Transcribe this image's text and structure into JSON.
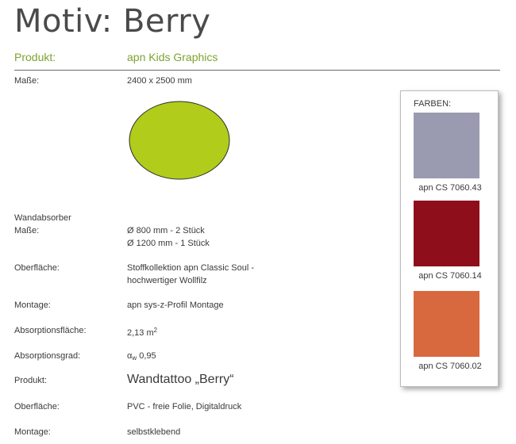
{
  "header": {
    "title": "Motiv: Berry",
    "produkt_label": "Produkt:",
    "produkt_value": "apn Kids Graphics"
  },
  "masse": {
    "label": "Maße:",
    "value": "2400 x 2500 mm"
  },
  "circle_color": "#b1cc1a",
  "wandabsorber": {
    "section_label": "Wandabsorber",
    "rows": [
      {
        "label": "Maße:",
        "lines": [
          "Ø 800 mm - 2 Stück",
          "Ø 1200 mm - 1 Stück"
        ]
      },
      {
        "label": "Oberfläche:",
        "lines": [
          "Stoffkollektion apn Classic Soul  -",
          "hochwertiger Wollfilz"
        ]
      },
      {
        "label": "Montage:",
        "value": "apn sys-z-Profil Montage"
      },
      {
        "label": "Absorptionsfläche:",
        "value": "2,13 m",
        "sup": "2"
      },
      {
        "label": "Absorptionsgrad:",
        "prefix": "α",
        "sub": "w",
        "value": "0,95"
      }
    ]
  },
  "wandtattoo": {
    "rows": [
      {
        "label": "Produkt:",
        "value": "Wandtattoo „Berry“"
      },
      {
        "label": "Oberfläche:",
        "value": "PVC - freie Folie, Digitaldruck"
      },
      {
        "label": "Montage:",
        "value": "selbstklebend"
      }
    ]
  },
  "farben": {
    "title": "FARBEN:",
    "swatches": [
      {
        "color": "#9a9ab0",
        "label": "apn CS 7060.43"
      },
      {
        "color": "#8e0f1b",
        "label": "apn CS 7060.14"
      },
      {
        "color": "#d8683e",
        "label": "apn CS 7060.02"
      }
    ]
  }
}
